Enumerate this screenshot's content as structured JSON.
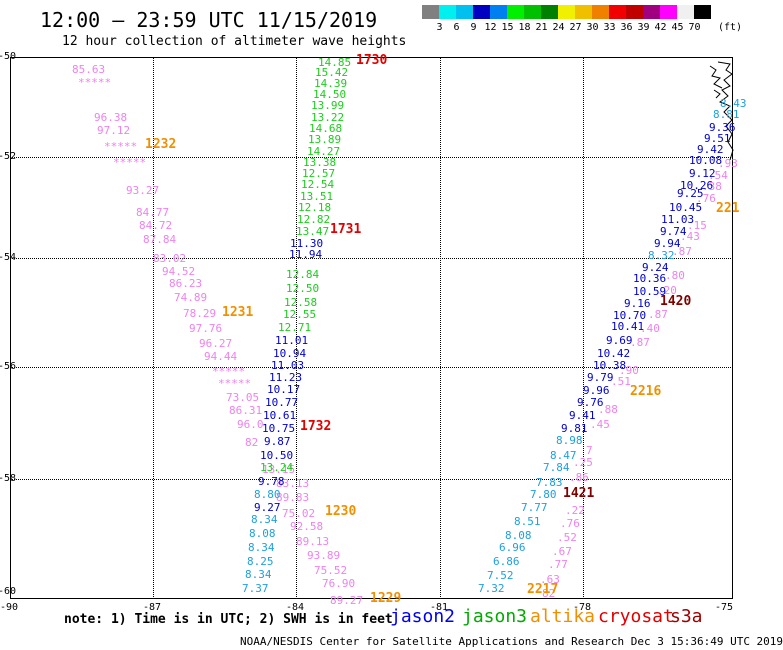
{
  "header": {
    "title": "12:00 – 23:59 UTC 11/15/2019",
    "subtitle": "12 hour collection of altimeter wave heights"
  },
  "legend": {
    "unit": "(ft)",
    "colors": [
      "#808080",
      "#00f0f0",
      "#00c0f0",
      "#0000c0",
      "#0080f0",
      "#00f000",
      "#00c000",
      "#008000",
      "#f0f000",
      "#f0c000",
      "#f08000",
      "#f00000",
      "#c00000",
      "#a00080",
      "#ff00ff",
      "#f0f0f0",
      "#000000"
    ],
    "labels": [
      "3",
      "6",
      "9",
      "12",
      "15",
      "18",
      "21",
      "24",
      "27",
      "30",
      "33",
      "36",
      "39",
      "42",
      "45",
      "70"
    ]
  },
  "axes": {
    "y_ticks": [
      "-50",
      "-52",
      "-54",
      "-56",
      "-58",
      "-60"
    ],
    "x_ticks": [
      "-90",
      "-87",
      "-84",
      "-81",
      "-78",
      "-75"
    ]
  },
  "tracks": [
    {
      "sat": "altika",
      "color": "#ee82ee",
      "points": [
        [
          "85.63",
          72,
          64
        ],
        [
          "*****",
          78,
          77
        ],
        [
          "96.38",
          94,
          112
        ],
        [
          "97.12",
          97,
          125
        ],
        [
          "*****",
          104,
          141
        ],
        [
          "*****",
          113,
          157
        ],
        [
          "93.27",
          126,
          185
        ],
        [
          "84.77",
          136,
          207
        ],
        [
          "84.72",
          139,
          220
        ],
        [
          "87.84",
          143,
          234
        ],
        [
          "83.02",
          153,
          253
        ],
        [
          "94.52",
          162,
          266
        ],
        [
          "86.23",
          169,
          278
        ],
        [
          "74.89",
          174,
          292
        ],
        [
          "78.29",
          183,
          308
        ],
        [
          "97.76",
          189,
          323
        ],
        [
          "96.27",
          199,
          338
        ],
        [
          "94.44",
          204,
          351
        ],
        [
          "*****",
          212,
          366
        ],
        [
          "*****",
          218,
          378
        ],
        [
          "73.05",
          226,
          392
        ],
        [
          "86.31",
          229,
          405
        ],
        [
          "96.0",
          237,
          419
        ],
        [
          "82",
          245,
          437
        ],
        [
          "13.15",
          262,
          464
        ],
        [
          "83.13",
          276,
          478
        ],
        [
          "89.83",
          276,
          492
        ],
        [
          "75.02",
          282,
          508
        ],
        [
          "92.58",
          290,
          521
        ],
        [
          "89.13",
          296,
          536
        ],
        [
          "93.89",
          307,
          550
        ],
        [
          "75.52",
          314,
          565
        ],
        [
          "76.90",
          322,
          578
        ],
        [
          "89.27",
          330,
          595
        ]
      ]
    },
    {
      "sat": "jason3",
      "color": "#1ecc1e",
      "points": [
        [
          "14.85",
          318,
          57
        ],
        [
          "15.42",
          315,
          67
        ],
        [
          "14.39",
          314,
          78
        ],
        [
          "14.50",
          313,
          89
        ],
        [
          "13.99",
          311,
          100
        ],
        [
          "13.22",
          311,
          112
        ],
        [
          "14.68",
          309,
          123
        ],
        [
          "13.89",
          308,
          134
        ],
        [
          "14.27",
          307,
          146
        ],
        [
          "13.38",
          303,
          157
        ],
        [
          "12.57",
          302,
          168
        ],
        [
          "12.54",
          301,
          179
        ],
        [
          "13.51",
          300,
          191
        ],
        [
          "12.18",
          298,
          202
        ],
        [
          "12.82",
          297,
          214
        ],
        [
          "13.47",
          296,
          226
        ],
        [
          "12.84",
          286,
          269
        ],
        [
          "12.50",
          286,
          283
        ],
        [
          "12.58",
          284,
          297
        ],
        [
          "12.55",
          283,
          309
        ],
        [
          "12.71",
          278,
          322
        ],
        [
          "13.24",
          260,
          462
        ]
      ]
    },
    {
      "sat": "jason2",
      "color": "#0000d0",
      "points": [
        [
          "11.30",
          290,
          238
        ],
        [
          "11.94",
          289,
          249
        ],
        [
          "11.01",
          275,
          335
        ],
        [
          "10.94",
          273,
          348
        ],
        [
          "11.03",
          271,
          360
        ],
        [
          "11.23",
          269,
          372
        ],
        [
          "10.17",
          267,
          384
        ],
        [
          "10.77",
          265,
          397
        ],
        [
          "10.61",
          263,
          410
        ],
        [
          "10.75",
          262,
          423
        ],
        [
          "9.87",
          264,
          436
        ],
        [
          "10.50",
          260,
          450
        ],
        [
          "9.78",
          258,
          476
        ]
      ]
    },
    {
      "sat": "jason2-cyan",
      "color": "#1ea0e0",
      "points": [
        [
          "8.80",
          254,
          489
        ],
        [
          "8.34",
          251,
          514
        ],
        [
          "8.08",
          249,
          528
        ],
        [
          "8.34",
          248,
          542
        ],
        [
          "8.25",
          247,
          556
        ],
        [
          "8.34",
          245,
          569
        ],
        [
          "7.37",
          242,
          583
        ]
      ]
    },
    {
      "sat": "jason2",
      "color": "#0000d0",
      "points": [
        [
          "9.27",
          254,
          502
        ]
      ]
    },
    {
      "sat": "altika",
      "color": "#ee82ee",
      "points": [
        [
          "82",
          542,
          588
        ],
        [
          ".63",
          540,
          574
        ],
        [
          ".77",
          548,
          559
        ],
        [
          ".67",
          552,
          546
        ],
        [
          ".52",
          557,
          532
        ],
        [
          ".76",
          560,
          518
        ],
        [
          ".22",
          565,
          505
        ],
        [
          ".86",
          569,
          472
        ],
        [
          ".25",
          573,
          457
        ],
        [
          "7",
          586,
          445
        ],
        [
          ".45",
          590,
          419
        ],
        [
          ".88",
          598,
          404
        ],
        [
          ".51",
          611,
          376
        ],
        [
          ".90",
          619,
          365
        ],
        [
          ".87",
          630,
          337
        ],
        [
          ".40",
          640,
          323
        ],
        [
          ".87",
          648,
          309
        ],
        [
          ".20",
          657,
          285
        ],
        [
          ".80",
          665,
          270
        ],
        [
          ".87",
          672,
          246
        ],
        [
          ".43",
          680,
          231
        ],
        [
          ".15",
          687,
          220
        ],
        [
          ".76",
          696,
          193
        ],
        [
          ".38",
          702,
          181
        ],
        [
          ".54",
          708,
          170
        ],
        [
          ".93",
          718,
          158
        ]
      ]
    },
    {
      "sat": "jason3",
      "color": "#1ecc1e",
      "points": []
    },
    {
      "sat": "jason2-b",
      "color": "#1ea0e0",
      "points": [
        [
          "7.32",
          478,
          583
        ],
        [
          "7.52",
          487,
          570
        ],
        [
          "6.86",
          493,
          556
        ],
        [
          "6.96",
          499,
          542
        ],
        [
          "8.08",
          505,
          530
        ],
        [
          "8.51",
          514,
          516
        ],
        [
          "7.77",
          521,
          502
        ],
        [
          "7.80",
          530,
          489
        ],
        [
          "7.83",
          536,
          477
        ],
        [
          "7.84",
          543,
          462
        ],
        [
          "8.47",
          550,
          450
        ],
        [
          "8.98",
          556,
          435
        ],
        [
          "8.32",
          648,
          250
        ]
      ]
    },
    {
      "sat": "jason2-b",
      "color": "#0000d0",
      "points": [
        [
          "9.81",
          561,
          423
        ],
        [
          "9.41",
          569,
          410
        ],
        [
          "9.76",
          577,
          397
        ],
        [
          "9.96",
          583,
          385
        ],
        [
          "9.79",
          587,
          372
        ],
        [
          "10.38",
          593,
          360
        ],
        [
          "10.42",
          597,
          348
        ],
        [
          "9.69",
          606,
          335
        ],
        [
          "10.41",
          611,
          321
        ],
        [
          "10.70",
          613,
          310
        ],
        [
          "9.16",
          624,
          298
        ],
        [
          "10.59",
          633,
          286
        ],
        [
          "10.36",
          633,
          273
        ],
        [
          "9.24",
          642,
          262
        ],
        [
          "9.94",
          654,
          238
        ],
        [
          "9.74",
          660,
          226
        ],
        [
          "11.03",
          661,
          214
        ],
        [
          "10.45",
          669,
          202
        ],
        [
          "9.25",
          677,
          188
        ],
        [
          "10.26",
          680,
          180
        ],
        [
          "9.12",
          689,
          168
        ],
        [
          "10.08",
          689,
          155
        ],
        [
          "9.42",
          697,
          144
        ],
        [
          "9.51",
          704,
          133
        ],
        [
          "9.36",
          709,
          122
        ]
      ]
    },
    {
      "sat": "jason2-b2",
      "color": "#1ea0e0",
      "points": [
        [
          "8.81",
          713,
          109
        ],
        [
          "8.43",
          720,
          98
        ]
      ]
    }
  ],
  "time_labels": [
    {
      "text": "1730",
      "color": "#e00000",
      "x": 356,
      "y": 53
    },
    {
      "text": "1232",
      "color": "#f09000",
      "x": 145,
      "y": 137
    },
    {
      "text": "1731",
      "color": "#e00000",
      "x": 330,
      "y": 222
    },
    {
      "text": "1231",
      "color": "#f09000",
      "x": 222,
      "y": 305
    },
    {
      "text": "1732",
      "color": "#e00000",
      "x": 300,
      "y": 419
    },
    {
      "text": "1230",
      "color": "#f09000",
      "x": 325,
      "y": 504
    },
    {
      "text": "1229",
      "color": "#f09000",
      "x": 370,
      "y": 591
    },
    {
      "text": "221",
      "color": "#f09000",
      "x": 716,
      "y": 201
    },
    {
      "text": "1420",
      "color": "#800000",
      "x": 660,
      "y": 294
    },
    {
      "text": "2216",
      "color": "#f09000",
      "x": 630,
      "y": 384
    },
    {
      "text": "1421",
      "color": "#800000",
      "x": 563,
      "y": 486
    },
    {
      "text": "2217",
      "color": "#f09000",
      "x": 527,
      "y": 582
    }
  ],
  "note": "note: 1) Time is in UTC; 2) SWH is in feet",
  "satellites": [
    {
      "name": "jason2",
      "color": "#0000ee"
    },
    {
      "name": "jason3",
      "color": "#00aa00"
    },
    {
      "name": "altika",
      "color": "#f09000"
    },
    {
      "name": "cryosat",
      "color": "#e00000"
    },
    {
      "name": "s3a",
      "color": "#a00000"
    }
  ],
  "footer": "NOAA/NESDIS Center for Satellite Applications and Research    Dec  3 15:36:49 UTC 2019"
}
